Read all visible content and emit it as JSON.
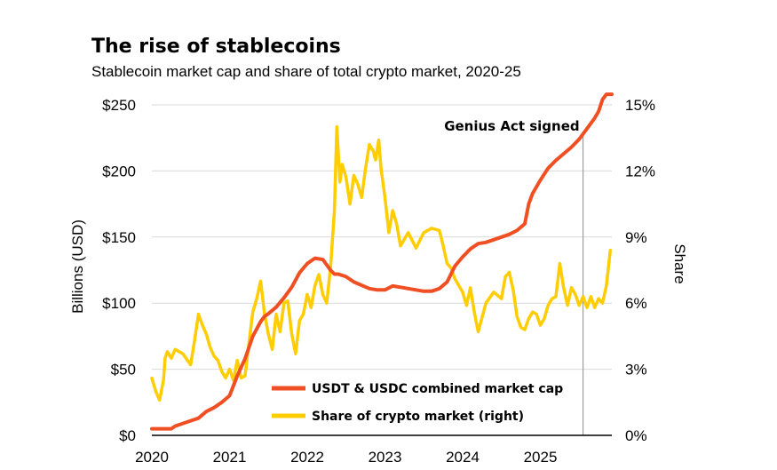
{
  "chart_data": {
    "type": "line",
    "title": "The rise of stablecoins",
    "subtitle": "Stablecoin market cap and share of total crypto market, 2020-25",
    "ylabel": "Billions (USD)",
    "y2label": "Share",
    "ylim": [
      0,
      250
    ],
    "y2lim": [
      0,
      15
    ],
    "xlim": [
      2020,
      2025.92
    ],
    "x_ticks": [
      "2020",
      "2021",
      "2022",
      "2023",
      "2024",
      "2025"
    ],
    "y_ticks": [
      "$0",
      "$50",
      "$100",
      "$150",
      "$200",
      "$250"
    ],
    "y2_ticks": [
      "0%",
      "3%",
      "6%",
      "9%",
      "12%",
      "15%"
    ],
    "grid": true,
    "legend_position": "bottom-center",
    "colors": {
      "market_cap": "#f04e23",
      "share": "#ffcd00"
    },
    "annotations": [
      {
        "text": "Genius Act signed",
        "x": 2025.55
      }
    ],
    "series": [
      {
        "name": "USDT & USDC combined market cap",
        "axis": "left",
        "x": [
          2020.0,
          2020.25,
          2020.3,
          2020.4,
          2020.5,
          2020.6,
          2020.7,
          2020.8,
          2020.9,
          2021.0,
          2021.1,
          2021.2,
          2021.3,
          2021.4,
          2021.45,
          2021.5,
          2021.6,
          2021.7,
          2021.8,
          2021.9,
          2022.0,
          2022.1,
          2022.2,
          2022.3,
          2022.35,
          2022.4,
          2022.5,
          2022.6,
          2022.8,
          2022.9,
          2023.0,
          2023.1,
          2023.2,
          2023.3,
          2023.5,
          2023.6,
          2023.7,
          2023.8,
          2023.9,
          2024.0,
          2024.1,
          2024.2,
          2024.3,
          2024.4,
          2024.5,
          2024.6,
          2024.7,
          2024.8,
          2024.85,
          2024.9,
          2025.0,
          2025.1,
          2025.2,
          2025.3,
          2025.4,
          2025.5,
          2025.6,
          2025.7,
          2025.75,
          2025.8,
          2025.85,
          2025.92
        ],
        "values": [
          5,
          5,
          7,
          9,
          11,
          13,
          18,
          21,
          25,
          30,
          45,
          58,
          75,
          86,
          90,
          92,
          97,
          104,
          112,
          123,
          130,
          134,
          133,
          125,
          122,
          122,
          120,
          116,
          111,
          110,
          110,
          113,
          112,
          111,
          109,
          109,
          111,
          116,
          128,
          135,
          141,
          145,
          146,
          148,
          150,
          152,
          155,
          160,
          175,
          183,
          193,
          202,
          208,
          213,
          218,
          224,
          232,
          240,
          245,
          254,
          258,
          258
        ]
      },
      {
        "name": "Share of crypto market (right)",
        "axis": "right",
        "x": [
          2020.0,
          2020.05,
          2020.1,
          2020.15,
          2020.17,
          2020.2,
          2020.25,
          2020.3,
          2020.4,
          2020.5,
          2020.55,
          2020.6,
          2020.65,
          2020.7,
          2020.75,
          2020.8,
          2020.85,
          2020.9,
          2020.95,
          2021.0,
          2021.05,
          2021.1,
          2021.15,
          2021.2,
          2021.25,
          2021.3,
          2021.35,
          2021.4,
          2021.45,
          2021.5,
          2021.55,
          2021.6,
          2021.65,
          2021.7,
          2021.75,
          2021.8,
          2021.85,
          2021.9,
          2021.95,
          2022.0,
          2022.05,
          2022.1,
          2022.15,
          2022.2,
          2022.25,
          2022.3,
          2022.35,
          2022.38,
          2022.42,
          2022.45,
          2022.5,
          2022.55,
          2022.6,
          2022.65,
          2022.7,
          2022.75,
          2022.8,
          2022.85,
          2022.88,
          2022.92,
          2022.95,
          2023.0,
          2023.05,
          2023.1,
          2023.15,
          2023.2,
          2023.3,
          2023.4,
          2023.5,
          2023.6,
          2023.7,
          2023.75,
          2023.8,
          2023.85,
          2023.9,
          2024.0,
          2024.05,
          2024.1,
          2024.15,
          2024.2,
          2024.3,
          2024.4,
          2024.5,
          2024.55,
          2024.6,
          2024.65,
          2024.7,
          2024.75,
          2024.8,
          2024.85,
          2024.9,
          2024.95,
          2025.0,
          2025.05,
          2025.1,
          2025.15,
          2025.2,
          2025.25,
          2025.3,
          2025.35,
          2025.4,
          2025.45,
          2025.5,
          2025.55,
          2025.6,
          2025.65,
          2025.7,
          2025.75,
          2025.8,
          2025.85,
          2025.9
        ],
        "values": [
          2.6,
          2.0,
          1.6,
          2.5,
          3.5,
          3.8,
          3.5,
          3.9,
          3.7,
          3.2,
          4.3,
          5.5,
          5.0,
          4.6,
          4.0,
          3.6,
          3.4,
          2.9,
          2.6,
          3.0,
          2.5,
          3.4,
          2.6,
          2.7,
          4.2,
          5.6,
          6.2,
          7.0,
          5.5,
          4.6,
          3.9,
          5.5,
          4.7,
          6.0,
          6.1,
          4.6,
          3.7,
          5.2,
          5.5,
          6.4,
          5.8,
          6.8,
          7.3,
          6.4,
          6.0,
          7.6,
          10.2,
          14.0,
          11.5,
          12.3,
          11.7,
          10.5,
          11.8,
          11.4,
          10.8,
          12.1,
          13.2,
          12.9,
          12.5,
          13.4,
          12.1,
          10.8,
          9.2,
          10.2,
          9.6,
          8.6,
          9.2,
          8.5,
          9.2,
          9.4,
          9.3,
          8.6,
          7.8,
          7.6,
          7.1,
          6.5,
          5.9,
          6.7,
          5.6,
          4.7,
          6.0,
          6.5,
          6.2,
          7.2,
          7.4,
          6.6,
          5.4,
          4.9,
          4.8,
          5.3,
          5.6,
          5.5,
          5.0,
          5.3,
          5.9,
          6.2,
          6.3,
          7.8,
          6.7,
          5.9,
          6.7,
          6.4,
          5.9,
          6.3,
          5.8,
          6.3,
          5.8,
          6.2,
          6.0,
          6.8,
          8.4
        ]
      }
    ]
  }
}
